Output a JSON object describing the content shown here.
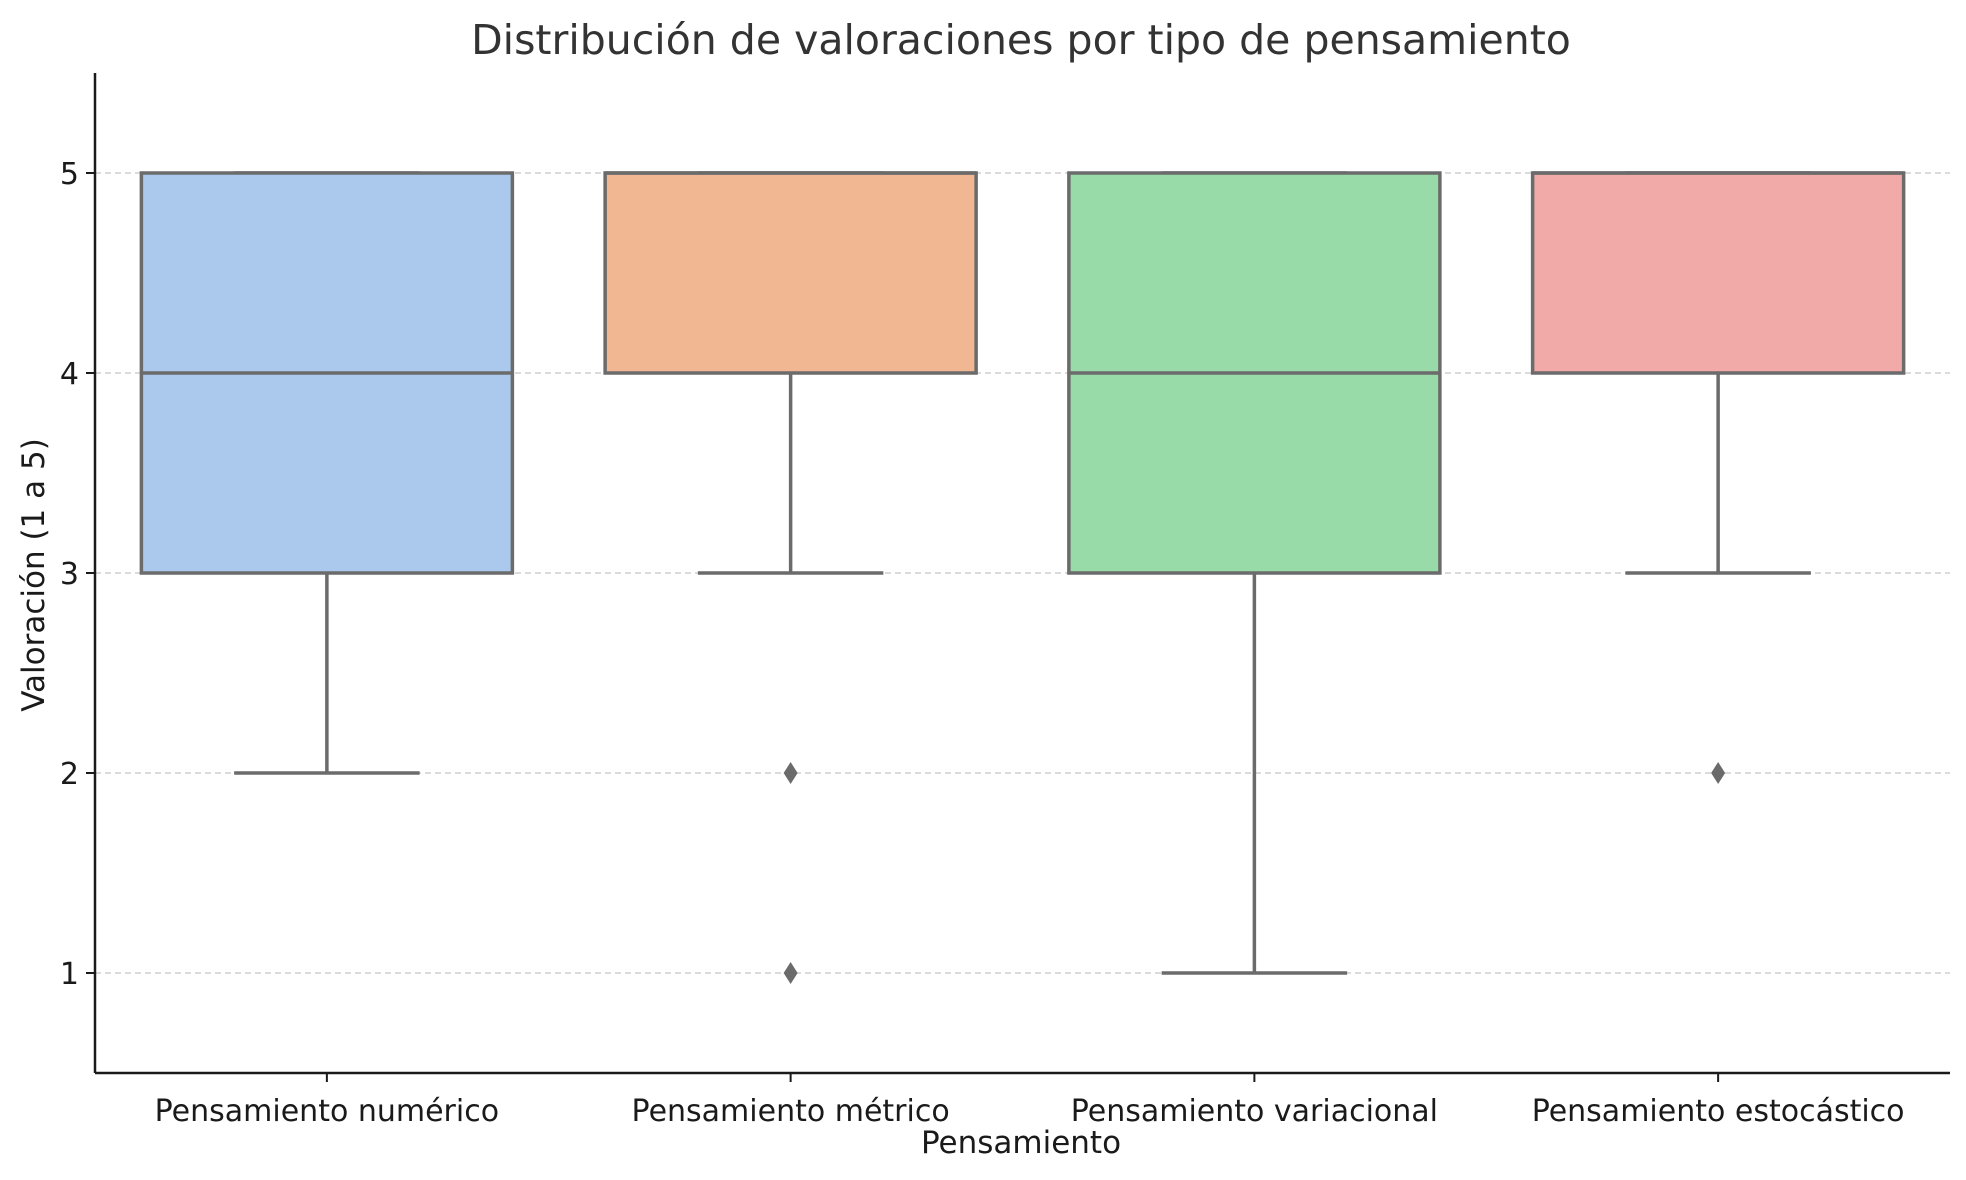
{
  "chart_data": {
    "type": "box",
    "title": "Distribución de valoraciones por tipo de pensamiento",
    "xlabel": "Pensamiento",
    "ylabel": "Valoración (1 a 5)",
    "ylim": [
      0.5,
      5.5
    ],
    "yticks": [
      1,
      2,
      3,
      4,
      5
    ],
    "grid": "horizontal-dashed",
    "categories": [
      "Pensamiento numérico",
      "Pensamiento métrico",
      "Pensamiento variacional",
      "Pensamiento estocástico"
    ],
    "boxes": [
      {
        "category": "Pensamiento numérico",
        "q1": 3,
        "median": 4,
        "q3": 5,
        "whisker_low": 2,
        "whisker_high": 5,
        "outliers": [],
        "color": "#abc9ec"
      },
      {
        "category": "Pensamiento métrico",
        "q1": 4,
        "median": 5,
        "q3": 5,
        "whisker_low": 3,
        "whisker_high": 5,
        "outliers": [
          2,
          1
        ],
        "color": "#f0b792"
      },
      {
        "category": "Pensamiento variacional",
        "q1": 3,
        "median": 4,
        "q3": 5,
        "whisker_low": 1,
        "whisker_high": 5,
        "outliers": [],
        "color": "#98dba8"
      },
      {
        "category": "Pensamiento estocástico",
        "q1": 4,
        "median": 5,
        "q3": 5,
        "whisker_low": 3,
        "whisker_high": 5,
        "outliers": [
          2
        ],
        "color": "#f2aaa9"
      }
    ]
  }
}
